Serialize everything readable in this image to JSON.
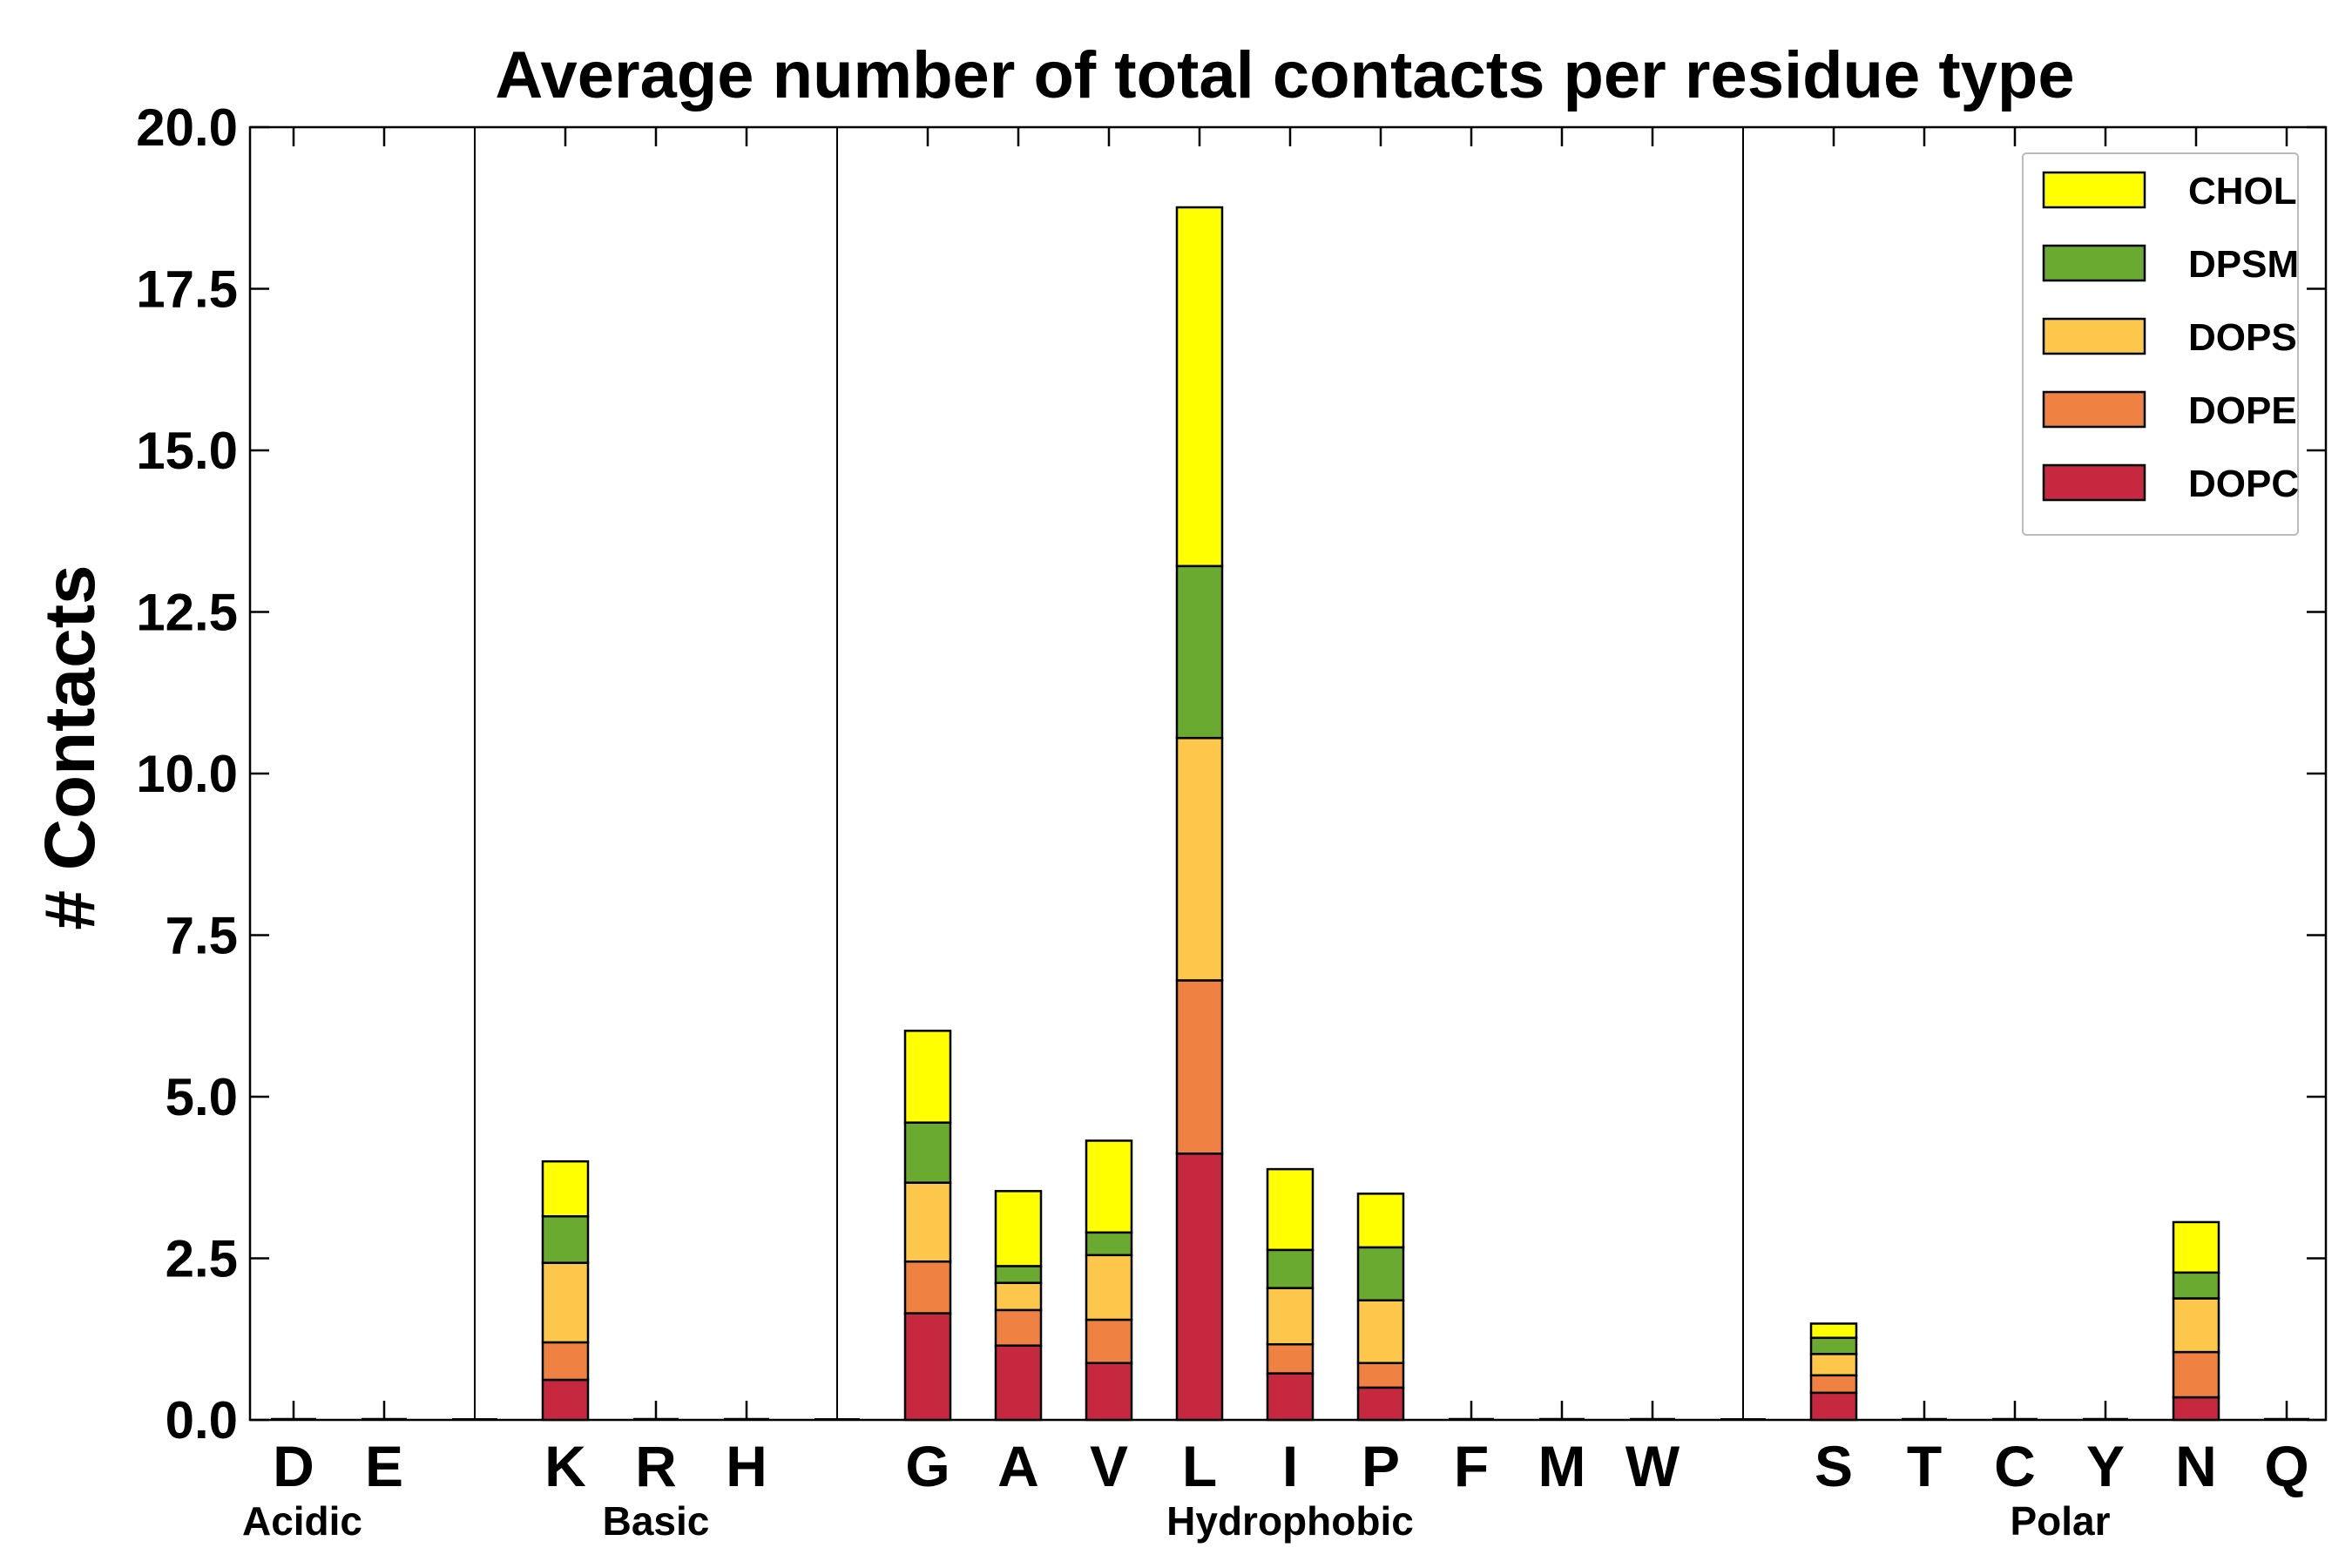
{
  "chart_data": {
    "type": "bar",
    "stacked": true,
    "title": "Average number of total contacts per residue type",
    "xlabel": "",
    "ylabel": "# Contacts",
    "ylim": [
      0,
      20
    ],
    "yticks": [
      "0.0",
      "2.5",
      "5.0",
      "7.5",
      "10.0",
      "12.5",
      "15.0",
      "17.5",
      "20.0"
    ],
    "grid": false,
    "legend_position": "top-right",
    "categories": [
      "D",
      "E",
      "K",
      "R",
      "H",
      "G",
      "A",
      "V",
      "L",
      "I",
      "P",
      "F",
      "M",
      "W",
      "S",
      "T",
      "C",
      "Y",
      "N",
      "Q"
    ],
    "groups": [
      {
        "name": "Acidic",
        "categories": [
          "D",
          "E"
        ]
      },
      {
        "name": "Basic",
        "categories": [
          "K",
          "R",
          "H"
        ]
      },
      {
        "name": "Hydrophobic",
        "categories": [
          "G",
          "A",
          "V",
          "L",
          "I",
          "P",
          "F",
          "M",
          "W"
        ]
      },
      {
        "name": "Polar",
        "categories": [
          "S",
          "T",
          "C",
          "Y",
          "N",
          "Q"
        ]
      }
    ],
    "series": [
      {
        "name": "DOPC",
        "color": "#c62840",
        "values": [
          0,
          0,
          0.62,
          0,
          0,
          1.65,
          1.15,
          0.88,
          4.12,
          0.72,
          0.5,
          0,
          0,
          0,
          0.42,
          0,
          0,
          0,
          0.35,
          0
        ]
      },
      {
        "name": "DOPE",
        "color": "#ef8242",
        "values": [
          0,
          0,
          0.58,
          0,
          0,
          0.8,
          0.55,
          0.67,
          2.68,
          0.45,
          0.38,
          0,
          0,
          0,
          0.27,
          0,
          0,
          0,
          0.7,
          0
        ]
      },
      {
        "name": "DOPS",
        "color": "#fcc74a",
        "values": [
          0,
          0,
          1.23,
          0,
          0,
          1.22,
          0.42,
          1.0,
          3.75,
          0.87,
          0.97,
          0,
          0,
          0,
          0.33,
          0,
          0,
          0,
          0.83,
          0
        ]
      },
      {
        "name": "DPSM",
        "color": "#6aaa30",
        "values": [
          0,
          0,
          0.72,
          0,
          0,
          0.93,
          0.26,
          0.35,
          2.66,
          0.59,
          0.82,
          0,
          0,
          0,
          0.25,
          0,
          0,
          0,
          0.4,
          0
        ]
      },
      {
        "name": "CHOL",
        "color": "#ffff00",
        "values": [
          0,
          0,
          0.85,
          0,
          0,
          1.42,
          1.16,
          1.42,
          5.55,
          1.25,
          0.83,
          0,
          0,
          0,
          0.22,
          0,
          0,
          0,
          0.78,
          0
        ]
      }
    ],
    "legend_order": [
      "CHOL",
      "DPSM",
      "DOPS",
      "DOPE",
      "DOPC"
    ]
  }
}
